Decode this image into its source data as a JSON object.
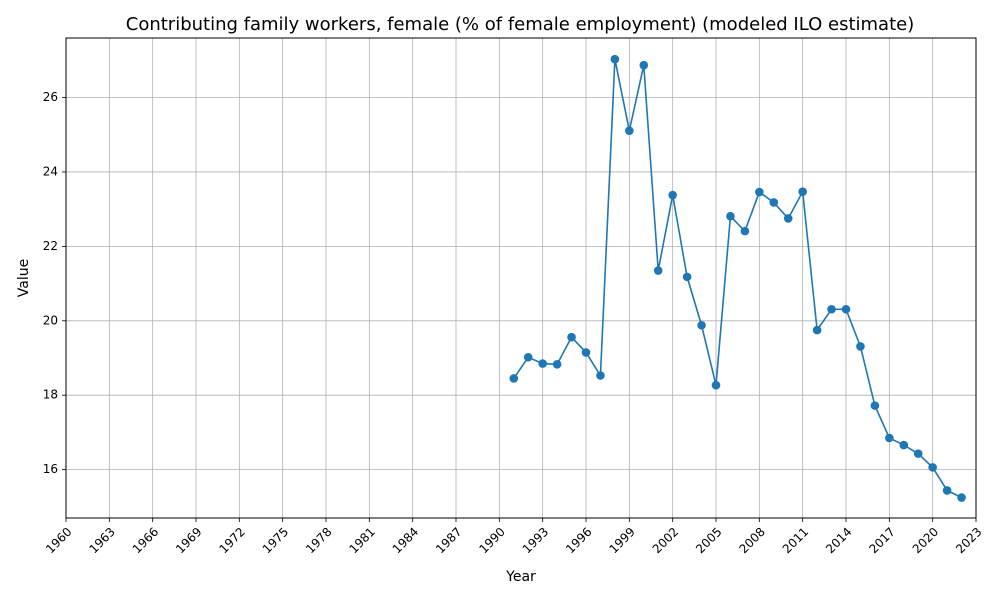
{
  "chart_data": {
    "type": "line",
    "title": "Contributing family workers, female (% of female employment) (modeled ILO estimate)",
    "xlabel": "Year",
    "ylabel": "Value",
    "xlim": [
      1960,
      2023
    ],
    "ylim": [
      14.7,
      27.6
    ],
    "x_ticks": [
      1960,
      1963,
      1966,
      1969,
      1972,
      1975,
      1978,
      1981,
      1984,
      1987,
      1990,
      1993,
      1996,
      1999,
      2002,
      2005,
      2008,
      2011,
      2014,
      2017,
      2020,
      2023
    ],
    "y_ticks": [
      16,
      18,
      20,
      22,
      24,
      26
    ],
    "grid": true,
    "series_color": "#1f77b4",
    "series": [
      {
        "x": [
          1991,
          1992,
          1993,
          1994,
          1995,
          1996,
          1997,
          1998,
          1999,
          2000,
          2001,
          2002,
          2003,
          2004,
          2005,
          2006,
          2007,
          2008,
          2009,
          2010,
          2011,
          2012,
          2013,
          2014,
          2015,
          2016,
          2017,
          2018,
          2019,
          2020,
          2021,
          2022
        ],
        "values": [
          18.45,
          19.02,
          18.85,
          18.83,
          19.56,
          19.15,
          18.53,
          27.03,
          25.11,
          26.87,
          21.35,
          23.38,
          21.18,
          19.88,
          18.27,
          22.81,
          22.41,
          23.46,
          23.18,
          22.75,
          23.47,
          19.75,
          20.31,
          20.31,
          19.31,
          17.72,
          16.85,
          16.66,
          16.43,
          16.06,
          15.44,
          15.25
        ]
      }
    ]
  }
}
